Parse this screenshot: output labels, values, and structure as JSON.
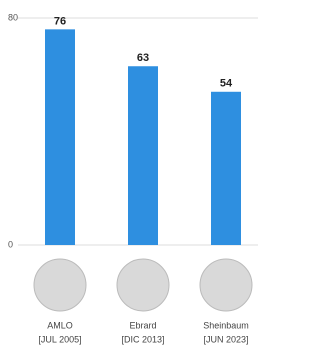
{
  "chart_data": {
    "type": "bar",
    "categories": [
      "AMLO",
      "Ebrard",
      "Sheinbaum"
    ],
    "category_dates": [
      "[JUL 2005]",
      "[DIC 2013]",
      "[JUN 2023]"
    ],
    "values": [
      76,
      63,
      54
    ],
    "color": "#2e8fe0",
    "ylim": [
      0,
      80
    ],
    "yticks": [
      0,
      80
    ],
    "grid": true
  }
}
